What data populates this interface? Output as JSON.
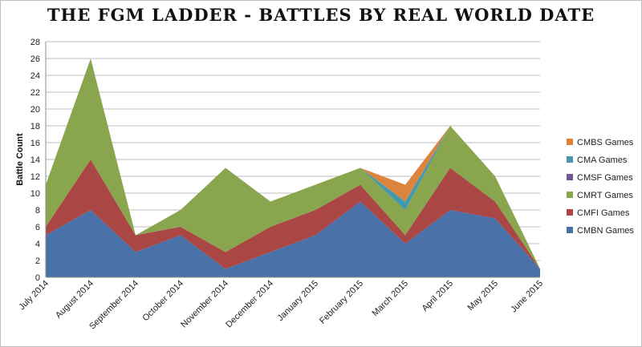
{
  "chart_data": {
    "type": "area",
    "stacked": true,
    "title": "THE FGM LADDER - BATTLES BY REAL WORLD DATE",
    "ylabel": "Battle Count",
    "xlabel": "",
    "ylim": [
      0,
      28
    ],
    "ytick_step": 2,
    "grid": true,
    "legend_position": "right",
    "categories": [
      "July 2014",
      "August 2014",
      "September 2014",
      "October 2014",
      "November 2014",
      "December 2014",
      "January 2015",
      "February 2015",
      "March 2015",
      "April 2015",
      "May 2015",
      "June 2015"
    ],
    "series": [
      {
        "name": "CMBN Games",
        "color": "#4a72a9",
        "values": [
          5,
          8,
          3,
          5,
          1,
          3,
          5,
          9,
          4,
          8,
          7,
          1
        ]
      },
      {
        "name": "CMFI Games",
        "color": "#aa4643",
        "values": [
          1,
          6,
          2,
          1,
          2,
          3,
          3,
          2,
          1,
          5,
          2,
          0
        ]
      },
      {
        "name": "CMRT Games",
        "color": "#89a54e",
        "values": [
          5,
          12,
          0,
          2,
          10,
          3,
          3,
          2,
          3,
          5,
          3,
          0
        ]
      },
      {
        "name": "CMSF Games",
        "color": "#71588f",
        "values": [
          0,
          0,
          0,
          0,
          0,
          0,
          0,
          0,
          0,
          0,
          0,
          0
        ]
      },
      {
        "name": "CMA Games",
        "color": "#4198af",
        "values": [
          0,
          0,
          0,
          0,
          0,
          0,
          0,
          0,
          1,
          0,
          0,
          0
        ]
      },
      {
        "name": "CMBS Games",
        "color": "#db843d",
        "values": [
          0,
          0,
          0,
          0,
          0,
          0,
          0,
          0,
          2,
          0,
          0,
          0
        ]
      }
    ],
    "legend_order": [
      "CMBS Games",
      "CMA Games",
      "CMSF Games",
      "CMRT Games",
      "CMFI Games",
      "CMBN Games"
    ]
  }
}
